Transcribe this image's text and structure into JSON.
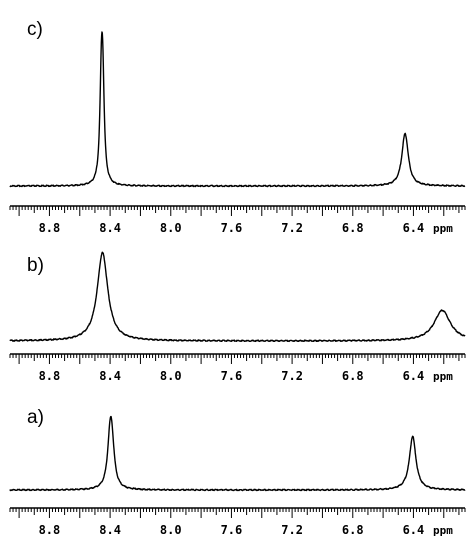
{
  "chart_data": [
    {
      "type": "line",
      "panel_label": "c)",
      "x_unit": "ppm",
      "x_reversed": true,
      "xlim": [
        9.06,
        6.06
      ],
      "x_ticks": [
        "8.8",
        "8.4",
        "8.0",
        "7.6",
        "7.2",
        "6.8",
        "6.4"
      ],
      "peaks": [
        {
          "center": 8.453,
          "height": 1.0,
          "width": 0.012,
          "split": 0.009
        },
        {
          "center": 6.455,
          "height": 0.31,
          "width": 0.024,
          "split": 0.01
        }
      ]
    },
    {
      "type": "line",
      "panel_label": "b)",
      "x_unit": "ppm",
      "x_reversed": true,
      "xlim": [
        9.06,
        6.06
      ],
      "x_ticks": [
        "8.8",
        "8.4",
        "8.0",
        "7.6",
        "7.2",
        "6.8",
        "6.4"
      ],
      "peaks": [
        {
          "center": 8.45,
          "height": 0.95,
          "width": 0.042,
          "split": 0
        },
        {
          "center": 6.21,
          "height": 0.33,
          "width": 0.065,
          "split": 0
        }
      ]
    },
    {
      "type": "line",
      "panel_label": "a)",
      "x_unit": "ppm",
      "x_reversed": true,
      "xlim": [
        9.06,
        6.06
      ],
      "x_ticks": [
        "8.8",
        "8.4",
        "8.0",
        "7.6",
        "7.2",
        "6.8",
        "6.4"
      ],
      "peaks": [
        {
          "center": 8.395,
          "height": 0.95,
          "width": 0.02,
          "split": 0.012
        },
        {
          "center": 6.405,
          "height": 0.64,
          "width": 0.026,
          "split": 0
        }
      ]
    }
  ]
}
